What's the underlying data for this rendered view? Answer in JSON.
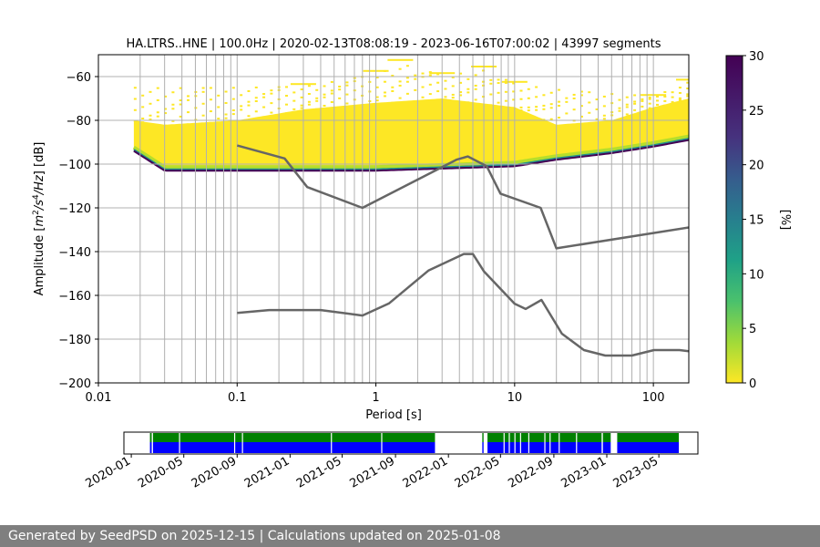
{
  "chart_data": [
    {
      "type": "heatmap",
      "title": "HA.LTRS..HNE | 100.0Hz | 2020-02-13T08:08:19 - 2023-06-16T07:00:02 | 43997 segments",
      "xlabel": "Period [s]",
      "ylabel_parts": [
        "Amplitude [",
        "m",
        "2",
        "/",
        "s",
        "4",
        "/",
        "Hz",
        "] [dB]"
      ],
      "x_scale": "log",
      "xlim": [
        0.01,
        180
      ],
      "ylim": [
        -200,
        -50
      ],
      "x_ticks": [
        {
          "value": 0.01,
          "label": "0.01"
        },
        {
          "value": 0.1,
          "label": "0.1"
        },
        {
          "value": 1,
          "label": "1"
        },
        {
          "value": 10,
          "label": "10"
        },
        {
          "value": 100,
          "label": "100"
        }
      ],
      "y_ticks": [
        {
          "value": -60,
          "label": "−60"
        },
        {
          "value": -80,
          "label": "−80"
        },
        {
          "value": -100,
          "label": "−100"
        },
        {
          "value": -120,
          "label": "−120"
        },
        {
          "value": -140,
          "label": "−140"
        },
        {
          "value": -160,
          "label": "−160"
        },
        {
          "value": -180,
          "label": "−180"
        },
        {
          "value": -200,
          "label": "−200"
        }
      ],
      "grid_periods": [
        0.02,
        0.03,
        0.04,
        0.05,
        0.06,
        0.07,
        0.08,
        0.09,
        0.1,
        0.2,
        0.3,
        0.4,
        0.5,
        0.6,
        0.7,
        0.8,
        0.9,
        1,
        2,
        3,
        4,
        5,
        6,
        7,
        8,
        9,
        10,
        20,
        30,
        40,
        50,
        60,
        70,
        80,
        90,
        100
      ],
      "grid_y": [
        -200,
        -180,
        -160,
        -140,
        -120,
        -100,
        -80,
        -60
      ],
      "colorbar": {
        "label": "[%]",
        "range": [
          0,
          30
        ],
        "ticks": [
          {
            "value": 0,
            "label": "0"
          },
          {
            "value": 5,
            "label": "5"
          },
          {
            "value": 10,
            "label": "10"
          },
          {
            "value": 15,
            "label": "15"
          },
          {
            "value": 20,
            "label": "20"
          },
          {
            "value": 25,
            "label": "25"
          },
          {
            "value": 30,
            "label": "30"
          }
        ],
        "colormap": "viridis_r"
      },
      "heat_band": {
        "period_range": [
          0.018,
          180
        ],
        "floor": [
          [
            0.018,
            -94
          ],
          [
            0.03,
            -103
          ],
          [
            0.1,
            -103
          ],
          [
            1,
            -103
          ],
          [
            10,
            -101
          ],
          [
            20,
            -98
          ],
          [
            50,
            -95
          ],
          [
            100,
            -92
          ],
          [
            180,
            -89
          ]
        ],
        "top": [
          [
            0.018,
            -80
          ],
          [
            0.03,
            -82
          ],
          [
            0.1,
            -80
          ],
          [
            0.3,
            -75
          ],
          [
            1,
            -72
          ],
          [
            3,
            -70
          ],
          [
            10,
            -74
          ],
          [
            20,
            -82
          ],
          [
            50,
            -80
          ],
          [
            100,
            -74
          ],
          [
            180,
            -70
          ]
        ],
        "upper_scatter": [
          [
            0.3,
            -63
          ],
          [
            1,
            -57
          ],
          [
            1.5,
            -52
          ],
          [
            3,
            -58
          ],
          [
            6,
            -55
          ],
          [
            10,
            -62
          ],
          [
            100,
            -68
          ],
          [
            180,
            -61
          ]
        ]
      },
      "noise_models": [
        {
          "name": "NHNM",
          "color": "#666666",
          "points": [
            [
              0.1,
              -91.5
            ],
            [
              0.22,
              -97.4
            ],
            [
              0.32,
              -110.5
            ],
            [
              0.8,
              -120
            ],
            [
              3.8,
              -98
            ],
            [
              4.6,
              -96.5
            ],
            [
              6.3,
              -101
            ],
            [
              7.9,
              -113.5
            ],
            [
              15.4,
              -120
            ],
            [
              20,
              -138.5
            ],
            [
              354.8,
              -126
            ]
          ]
        },
        {
          "name": "NLNM",
          "color": "#666666",
          "points": [
            [
              0.1,
              -168
            ],
            [
              0.17,
              -166.7
            ],
            [
              0.4,
              -166.7
            ],
            [
              0.8,
              -169.2
            ],
            [
              1.24,
              -163.7
            ],
            [
              2.4,
              -148.6
            ],
            [
              4.3,
              -141.1
            ],
            [
              5,
              -141.1
            ],
            [
              6,
              -149
            ],
            [
              10,
              -163.8
            ],
            [
              12,
              -166.2
            ],
            [
              15.6,
              -162.1
            ],
            [
              21.9,
              -177.5
            ],
            [
              31.6,
              -185
            ],
            [
              45,
              -187.5
            ],
            [
              70,
              -187.5
            ],
            [
              101,
              -185
            ],
            [
              154,
              -185
            ],
            [
              328,
              -187.5
            ]
          ]
        }
      ]
    },
    {
      "type": "timeline",
      "x_tick_labels": [
        "2020-01",
        "2020-05",
        "2020-09",
        "2021-01",
        "2021-05",
        "2021-09",
        "2022-01",
        "2022-05",
        "2022-09",
        "2023-01",
        "2023-05"
      ],
      "xlim": [
        "2019-12-15",
        "2023-07-30"
      ],
      "colors": {
        "top": "#008000",
        "bottom": "#0000ff"
      },
      "coverage": [
        [
          "2020-02-13",
          "2020-02-17"
        ],
        [
          "2020-02-20",
          "2021-12-01"
        ],
        [
          "2022-03-20",
          "2022-03-23"
        ],
        [
          "2022-04-01",
          "2022-12-20"
        ],
        [
          "2022-12-23",
          "2023-01-10"
        ],
        [
          "2023-01-25",
          "2023-06-16"
        ]
      ],
      "gaps": [
        "2020-04-20",
        "2020-08-25",
        "2020-09-12",
        "2021-04-05",
        "2021-07-30",
        "2022-05-08",
        "2022-05-20",
        "2022-06-02",
        "2022-06-15",
        "2022-07-04",
        "2022-08-10",
        "2022-08-22",
        "2022-09-12",
        "2022-10-22"
      ]
    }
  ],
  "footer": {
    "text": "Generated by SeedPSD on 2025-12-15 | Calculations updated on 2025-01-08"
  }
}
